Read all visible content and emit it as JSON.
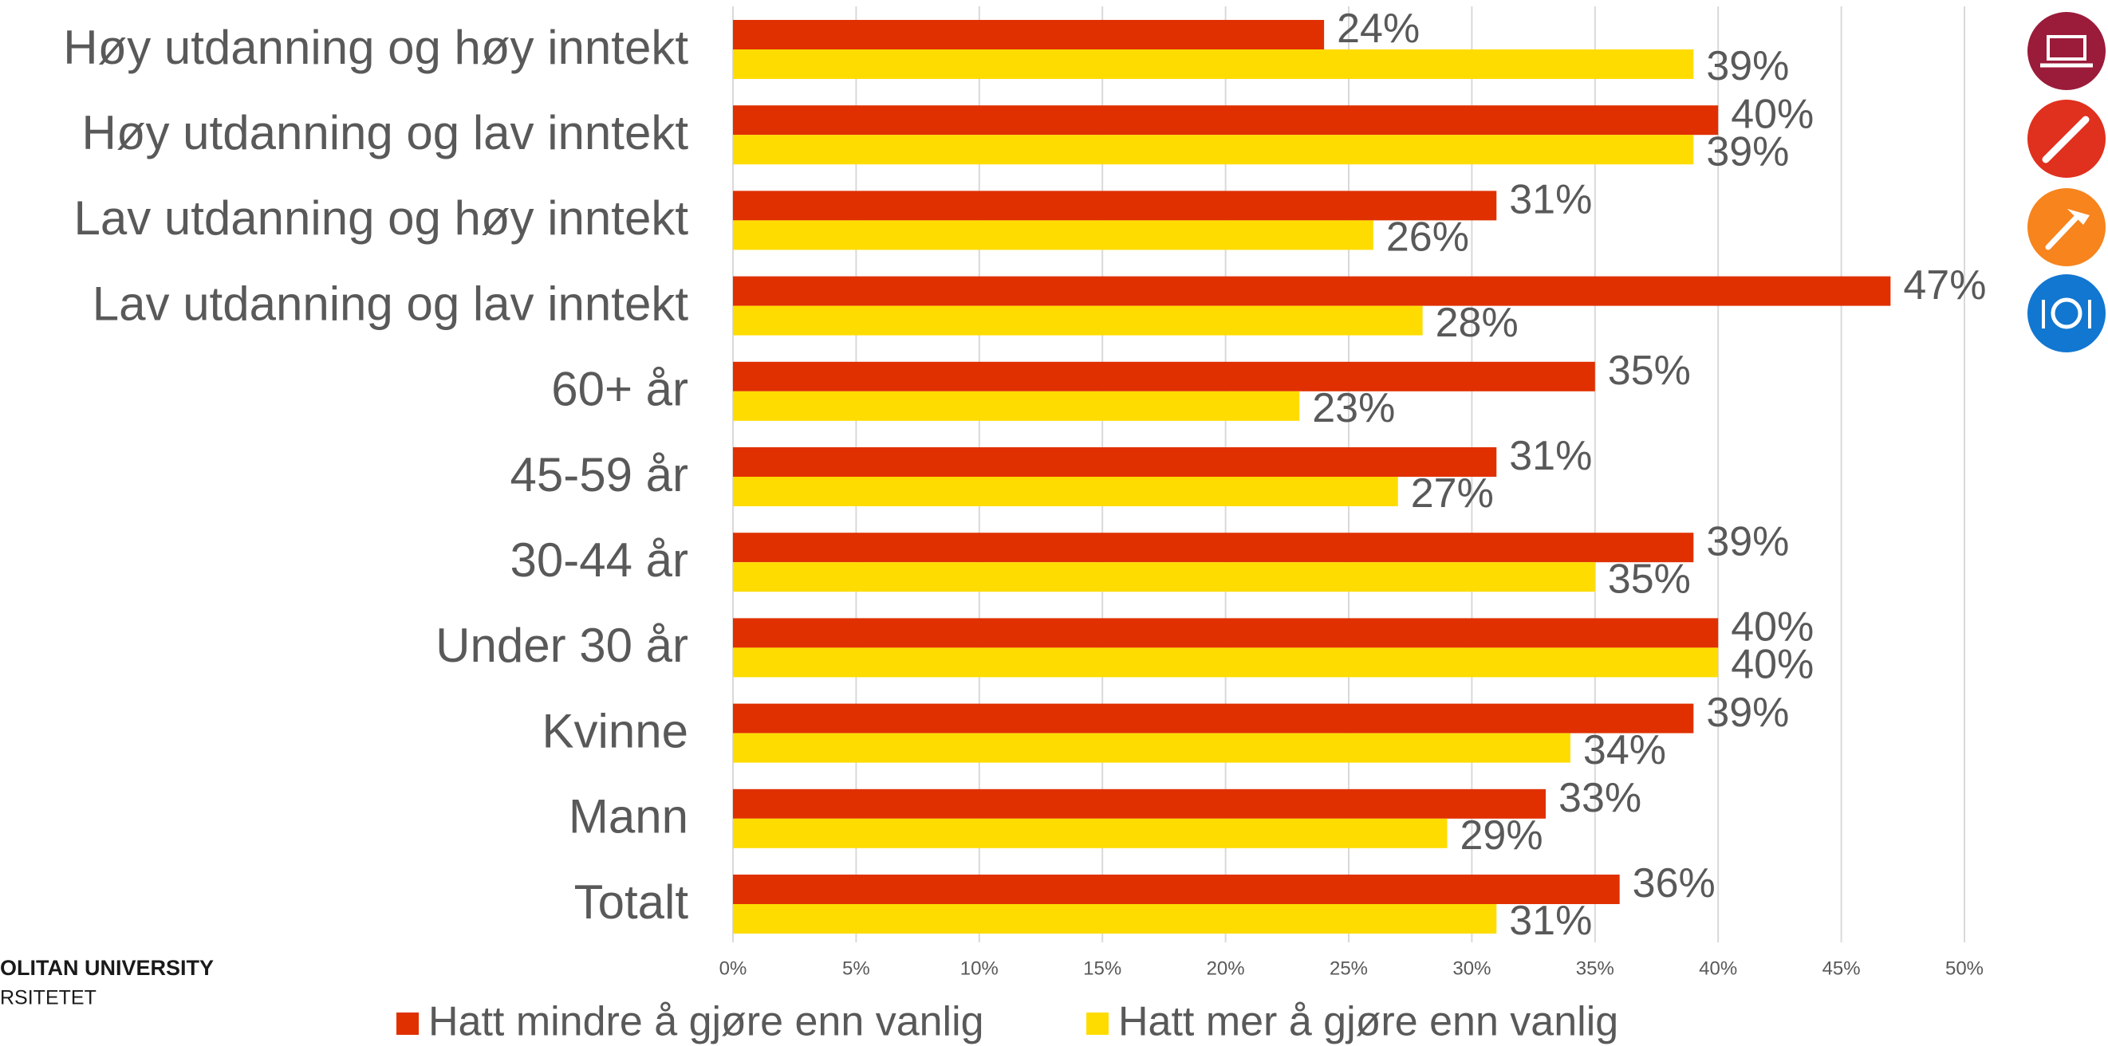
{
  "chart_data": {
    "type": "hbar",
    "categories": [
      "Høy utdanning og høy inntekt",
      "Høy utdanning og lav inntekt",
      "Lav utdanning og høy inntekt",
      "Lav utdanning og lav inntekt",
      "60+ år",
      "45-59 år",
      "30-44 år",
      "Under 30 år",
      "Kvinne",
      "Mann",
      "Totalt"
    ],
    "series": [
      {
        "name": "Hatt mindre å gjøre enn vanlig",
        "color": "#e03000",
        "values": [
          24,
          40,
          31,
          47,
          35,
          31,
          39,
          40,
          39,
          33,
          36
        ],
        "value_labels": [
          "24%",
          "40%",
          "31%",
          "47%",
          "35%",
          "31%",
          "39%",
          "40%",
          "39%",
          "33%",
          "36%"
        ]
      },
      {
        "name": "Hatt mer å gjøre enn vanlig",
        "color": "#ffdc00",
        "values": [
          39,
          39,
          26,
          28,
          23,
          27,
          35,
          40,
          34,
          29,
          31
        ],
        "value_labels": [
          "39%",
          "39%",
          "26%",
          "28%",
          "23%",
          "27%",
          "35%",
          "40%",
          "34%",
          "29%",
          "31%"
        ]
      }
    ],
    "xlim": [
      0,
      50
    ],
    "xticks": [
      {
        "value": 0,
        "label": "0%"
      },
      {
        "value": 5,
        "label": "5%"
      },
      {
        "value": 10,
        "label": "10%"
      },
      {
        "value": 15,
        "label": "15%"
      },
      {
        "value": 20,
        "label": "20%"
      },
      {
        "value": 25,
        "label": "25%"
      },
      {
        "value": 30,
        "label": "30%"
      },
      {
        "value": 35,
        "label": "35%"
      },
      {
        "value": 40,
        "label": "40%"
      },
      {
        "value": 45,
        "label": "45%"
      },
      {
        "value": 50,
        "label": "50%"
      }
    ],
    "grid": true,
    "legend": "bottom"
  },
  "logo": {
    "line1": "OLITAN UNIVERSITY",
    "line2": "RSITETET"
  }
}
